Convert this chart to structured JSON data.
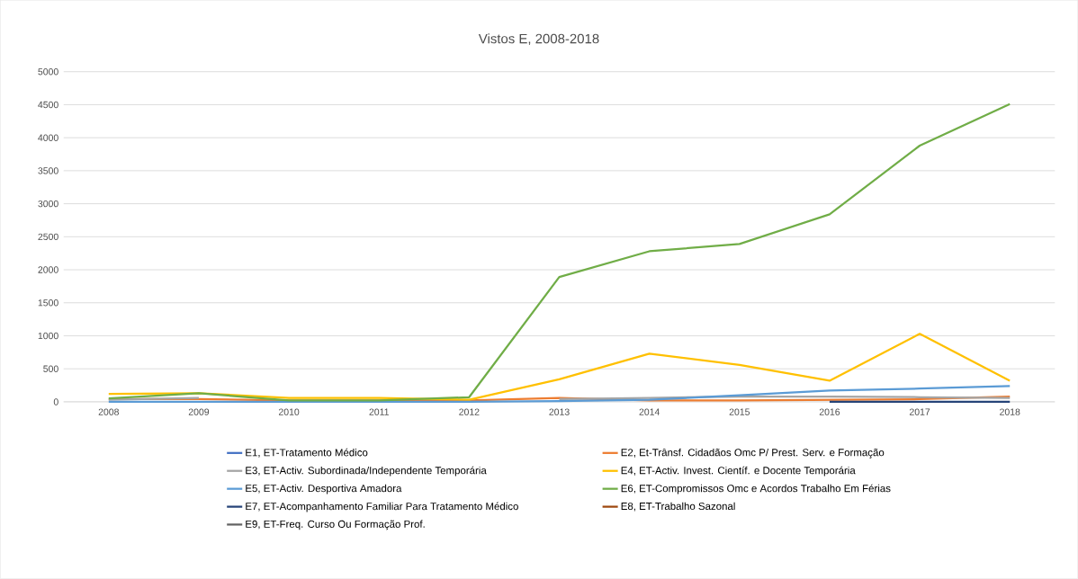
{
  "chart_data": {
    "type": "line",
    "title": "Vistos E, 2008-2018",
    "categories": [
      "2008",
      "2009",
      "2010",
      "2011",
      "2012",
      "2013",
      "2014",
      "2015",
      "2016",
      "2017",
      "2018"
    ],
    "series": [
      {
        "name": "E1, ET-Tratamento Médico",
        "color": "#4472c4",
        "values": [
          null,
          null,
          null,
          null,
          null,
          null,
          null,
          null,
          null,
          null,
          null
        ]
      },
      {
        "name": "E2, Et-Trânsf. Cidadãos Omc P/ Prest. Serv. e Formação",
        "color": "#ed7d31",
        "values": [
          40,
          40,
          20,
          20,
          20,
          60,
          20,
          20,
          30,
          40,
          80
        ]
      },
      {
        "name": "E3, ET-Activ. Subordinada/Independente Temporária",
        "color": "#a5a5a5",
        "values": [
          30,
          60,
          null,
          null,
          null,
          40,
          60,
          80,
          80,
          70,
          60
        ]
      },
      {
        "name": "E4, ET-Activ. Invest. Científ. e Docente Temporária",
        "color": "#ffc000",
        "values": [
          120,
          130,
          60,
          60,
          30,
          340,
          730,
          560,
          320,
          1030,
          320
        ]
      },
      {
        "name": "E5, ET-Activ. Desportiva Amadora",
        "color": "#5b9bd5",
        "values": [
          0,
          0,
          0,
          0,
          0,
          10,
          30,
          100,
          170,
          200,
          240
        ]
      },
      {
        "name": "E6, ET-Compromissos Omc e Acordos Trabalho Em Férias",
        "color": "#70ad47",
        "values": [
          50,
          130,
          20,
          20,
          70,
          1890,
          2280,
          2390,
          2840,
          3880,
          4510
        ]
      },
      {
        "name": "E7, ET-Acompanhamento Familiar Para Tratamento Médico",
        "color": "#264478",
        "values": [
          null,
          null,
          null,
          null,
          null,
          null,
          null,
          null,
          0,
          0,
          0
        ]
      },
      {
        "name": "E8, ET-Trabalho Sazonal",
        "color": "#9e480e",
        "values": [
          null,
          null,
          null,
          null,
          null,
          null,
          null,
          null,
          null,
          null,
          null
        ]
      },
      {
        "name": "E9, ET-Freq. Curso Ou Formação Prof.",
        "color": "#636363",
        "values": [
          null,
          null,
          null,
          null,
          null,
          null,
          null,
          null,
          null,
          null,
          null
        ]
      }
    ],
    "ylim": [
      0,
      5000
    ],
    "yticks": [
      0,
      500,
      1000,
      1500,
      2000,
      2500,
      3000,
      3500,
      4000,
      4500,
      5000
    ],
    "grid": "y",
    "legend": "bottom",
    "marker": "none",
    "line_style": "solid"
  }
}
